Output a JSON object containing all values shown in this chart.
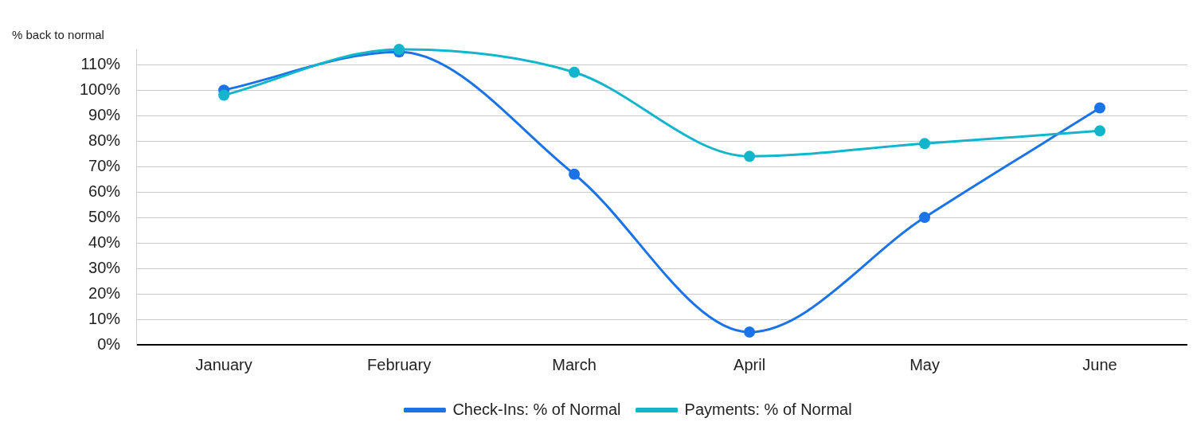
{
  "chart_data": {
    "type": "line",
    "ylabel": "% back to normal",
    "categories": [
      "January",
      "February",
      "March",
      "April",
      "May",
      "June"
    ],
    "series": [
      {
        "name": "Check-Ins: % of Normal",
        "color": "#1a73e8",
        "values": [
          100,
          115,
          67,
          5,
          50,
          93
        ]
      },
      {
        "name": "Payments: % of Normal",
        "color": "#12b5cb",
        "values": [
          98,
          116,
          107,
          74,
          79,
          84
        ]
      }
    ],
    "ylim": [
      0,
      116
    ],
    "yticks": [
      {
        "value": 0,
        "label": "0%"
      },
      {
        "value": 10,
        "label": "10%"
      },
      {
        "value": 20,
        "label": "20%"
      },
      {
        "value": 30,
        "label": "30%"
      },
      {
        "value": 40,
        "label": "40%"
      },
      {
        "value": 50,
        "label": "50%"
      },
      {
        "value": 60,
        "label": "60%"
      },
      {
        "value": 70,
        "label": "70%"
      },
      {
        "value": 80,
        "label": "80%"
      },
      {
        "value": 90,
        "label": "90%"
      },
      {
        "value": 100,
        "label": "100%"
      },
      {
        "value": 110,
        "label": "110%"
      }
    ],
    "grid": "y",
    "legend": "bottom",
    "marker": "circle",
    "line_style": "solid"
  }
}
